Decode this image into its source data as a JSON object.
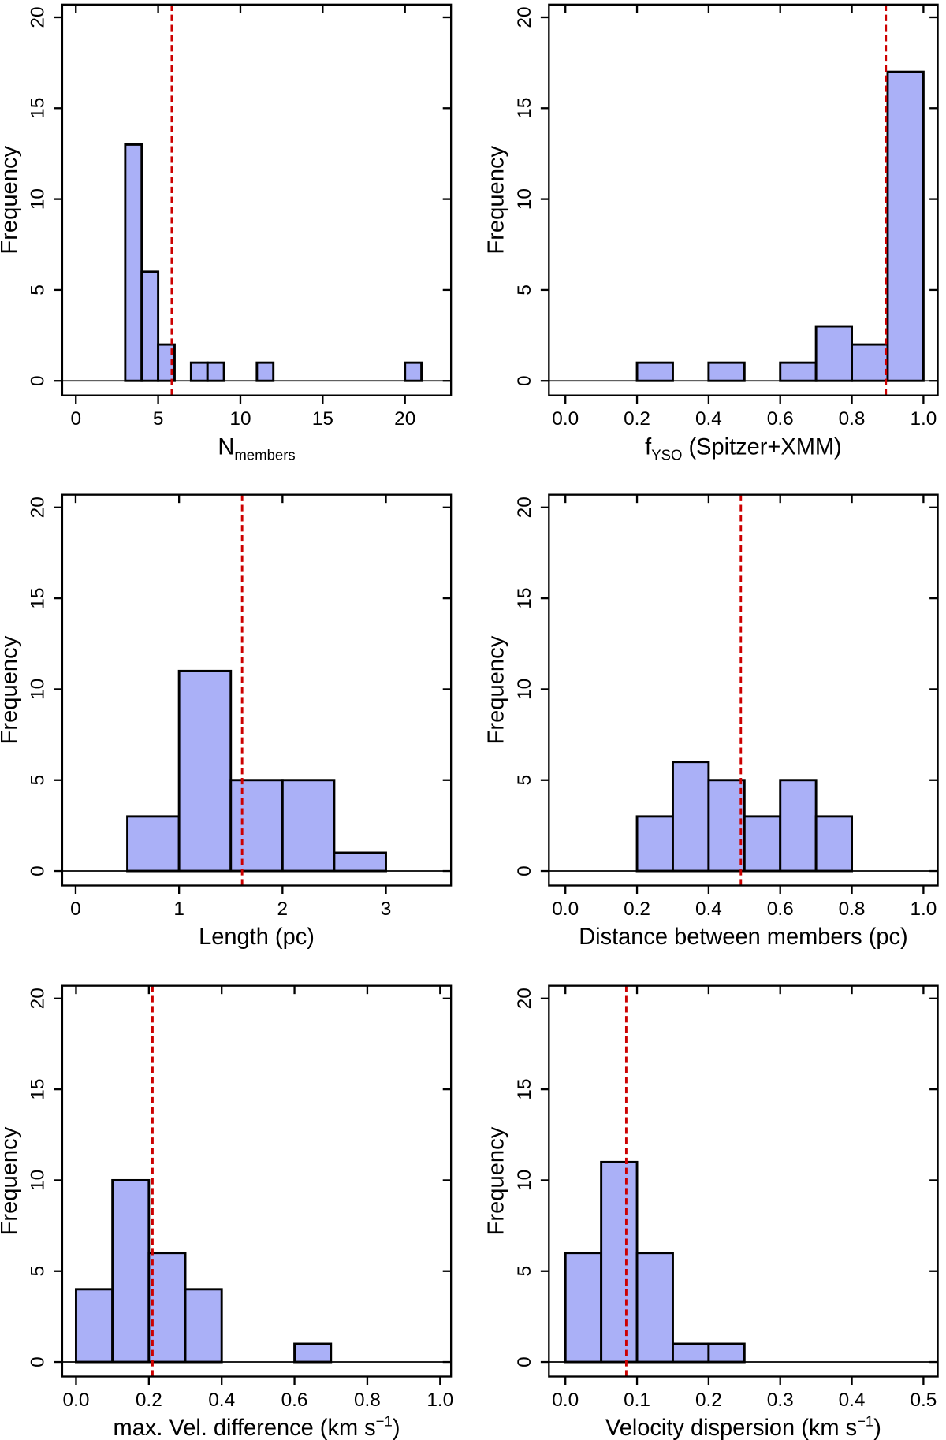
{
  "chart_data": [
    {
      "type": "histogram",
      "ylabel": "Frequency",
      "xlabel": [
        {
          "text": "N"
        },
        {
          "text": "members",
          "script": "sub"
        }
      ],
      "bins": [
        3,
        4,
        5,
        6,
        7,
        8,
        9,
        10,
        11,
        12,
        13,
        14,
        15,
        16,
        17,
        18,
        19,
        20,
        21
      ],
      "counts": [
        13,
        6,
        2,
        0,
        1,
        1,
        0,
        0,
        1,
        0,
        0,
        0,
        0,
        0,
        0,
        0,
        0,
        1
      ],
      "color": "#aab0f7",
      "vline": 5.83,
      "vline_color": "#cc0000",
      "xlim": [
        -0.83,
        22.8
      ],
      "xticks": [
        0,
        5,
        10,
        15,
        20
      ],
      "ylim": [
        -0.8,
        20.7
      ],
      "yticks": [
        0,
        5,
        10,
        15,
        20
      ]
    },
    {
      "type": "histogram",
      "ylabel": "Frequency",
      "xlabel": [
        {
          "text": "f"
        },
        {
          "text": "YSO",
          "script": "sub"
        },
        {
          "text": " (Spitzer+XMM)"
        }
      ],
      "bins": [
        0.2,
        0.3,
        0.4,
        0.5,
        0.6,
        0.7,
        0.8,
        0.9,
        1.0
      ],
      "counts": [
        1,
        0,
        1,
        0,
        1,
        3,
        2,
        17
      ],
      "color": "#aab0f7",
      "vline": 0.895,
      "vline_color": "#cc0000",
      "xlim": [
        -0.046,
        1.04
      ],
      "xticks": [
        {
          "value": 0,
          "label": "0.0"
        },
        0.2,
        0.4,
        0.6,
        0.8,
        {
          "value": 1,
          "label": "1.0"
        }
      ],
      "ylim": [
        -0.8,
        20.7
      ],
      "yticks": [
        0,
        5,
        10,
        15,
        20
      ]
    },
    {
      "type": "histogram",
      "ylabel": "Frequency",
      "xlabel": [
        {
          "text": "Length (pc)"
        }
      ],
      "bins": [
        0.5,
        1.0,
        1.5,
        2.0,
        2.5,
        3.0
      ],
      "counts": [
        3,
        11,
        5,
        5,
        1
      ],
      "color": "#aab0f7",
      "vline": 1.61,
      "vline_color": "#cc0000",
      "xlim": [
        -0.13,
        3.63
      ],
      "xticks": [
        0,
        1,
        2,
        3
      ],
      "ylim": [
        -0.8,
        20.7
      ],
      "yticks": [
        0,
        5,
        10,
        15,
        20
      ]
    },
    {
      "type": "histogram",
      "ylabel": "Frequency",
      "xlabel": [
        {
          "text": "Distance between members (pc)"
        }
      ],
      "bins": [
        0.2,
        0.3,
        0.4,
        0.5,
        0.6,
        0.7,
        0.8
      ],
      "counts": [
        3,
        6,
        5,
        3,
        5,
        3
      ],
      "color": "#aab0f7",
      "vline": 0.49,
      "vline_color": "#cc0000",
      "xlim": [
        -0.046,
        1.04
      ],
      "xticks": [
        {
          "value": 0,
          "label": "0.0"
        },
        0.2,
        0.4,
        0.6,
        0.8,
        {
          "value": 1,
          "label": "1.0"
        }
      ],
      "ylim": [
        -0.8,
        20.7
      ],
      "yticks": [
        0,
        5,
        10,
        15,
        20
      ]
    },
    {
      "type": "histogram",
      "ylabel": "Frequency",
      "xlabel": [
        {
          "text": "max. Vel. difference (km s"
        },
        {
          "text": "−1",
          "script": "sup"
        },
        {
          "text": ")"
        }
      ],
      "bins": [
        0.0,
        0.1,
        0.2,
        0.3,
        0.4,
        0.5,
        0.6,
        0.7
      ],
      "counts": [
        4,
        10,
        6,
        4,
        0,
        0,
        1
      ],
      "color": "#aab0f7",
      "vline": 0.21,
      "vline_color": "#cc0000",
      "xlim": [
        -0.038,
        1.03
      ],
      "xticks": [
        {
          "value": 0,
          "label": "0.0"
        },
        0.2,
        0.4,
        0.6,
        0.8,
        {
          "value": 1,
          "label": "1.0"
        }
      ],
      "ylim": [
        -0.8,
        20.7
      ],
      "yticks": [
        0,
        5,
        10,
        15,
        20
      ]
    },
    {
      "type": "histogram",
      "ylabel": "Frequency",
      "xlabel": [
        {
          "text": "Velocity dispersion (km s"
        },
        {
          "text": "−1",
          "script": "sup"
        },
        {
          "text": ")"
        }
      ],
      "bins": [
        0.0,
        0.05,
        0.1,
        0.15,
        0.2,
        0.25
      ],
      "counts": [
        6,
        11,
        6,
        1,
        1
      ],
      "color": "#aab0f7",
      "vline": 0.085,
      "vline_color": "#cc0000",
      "xlim": [
        -0.023,
        0.52
      ],
      "xticks": [
        {
          "value": 0,
          "label": "0.0"
        },
        0.1,
        0.2,
        0.3,
        0.4,
        0.5
      ],
      "ylim": [
        -0.8,
        20.7
      ],
      "yticks": [
        0,
        5,
        10,
        15,
        20
      ]
    }
  ]
}
